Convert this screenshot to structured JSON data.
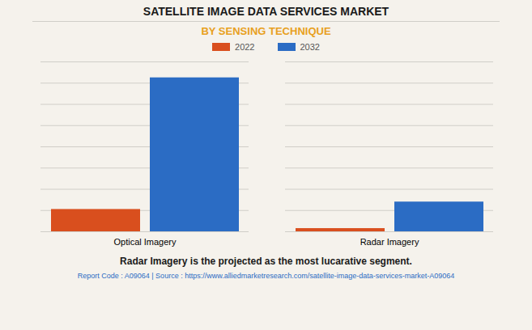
{
  "chart_data": {
    "type": "bar",
    "title": "SATELLITE IMAGE DATA SERVICES MARKET",
    "subtitle": "BY SENSING TECHNIQUE",
    "categories": [
      "Optical Imagery",
      "Radar Imagery"
    ],
    "series": [
      {
        "name": "2022",
        "color": "#D94F1E",
        "values": [
          2.1,
          0.3
        ]
      },
      {
        "name": "2032",
        "color": "#2B6CC4",
        "values": [
          14.5,
          2.8
        ]
      }
    ],
    "ylim": [
      0,
      16
    ],
    "yticks": [
      0,
      2,
      4,
      6,
      8,
      10,
      12,
      14,
      16
    ],
    "grid": true,
    "legend": "top",
    "tick_labels": "x",
    "annotations": [
      "Radar Imagery is the projected as the most lucarative segment.",
      "Report Code : A09064  |  Source : https://www.alliedmarketresearch.com/satellite-image-data-services-market-A09064"
    ]
  }
}
